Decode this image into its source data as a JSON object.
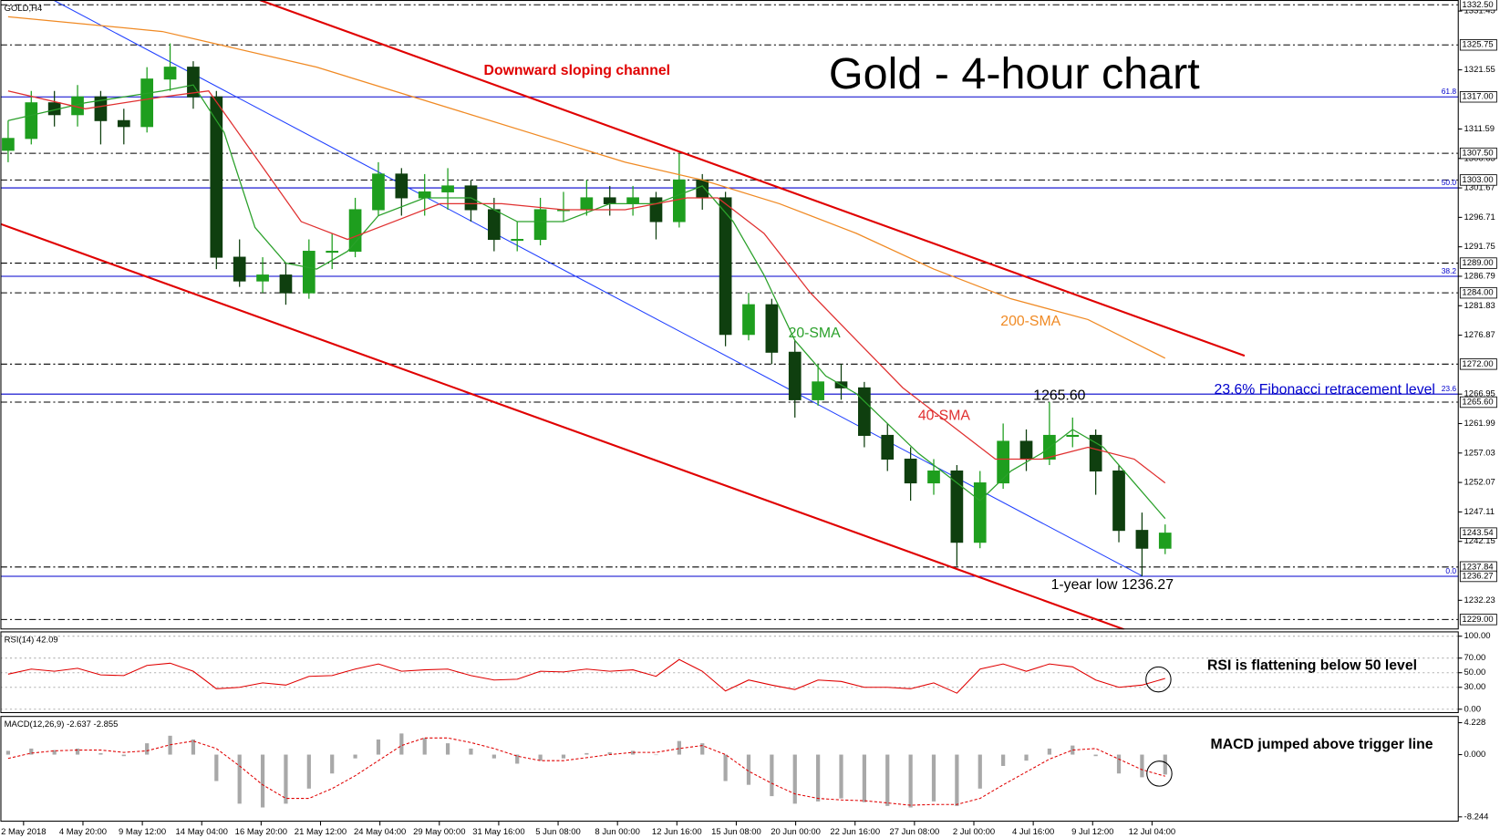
{
  "chart_data": [
    {
      "type": "candlestick",
      "title": "Gold - 4-hour chart",
      "symbol": "GOLD,H4",
      "xlim": [
        -1,
        188
      ],
      "ylim": [
        1227.32,
        1333.31
      ],
      "up_color": "#1e9e1e",
      "down_color": "#0f3f0f",
      "x": [
        0,
        3,
        6,
        9,
        12,
        15,
        18,
        21,
        24,
        27,
        30,
        33,
        36,
        39,
        42,
        45,
        48,
        51,
        54,
        57,
        60,
        63,
        66,
        69,
        72,
        75,
        78,
        81,
        84,
        87,
        90,
        93,
        96,
        99,
        102,
        105,
        108,
        111,
        114,
        117,
        120,
        123,
        126,
        129,
        132,
        135,
        138,
        141,
        144,
        147,
        150
      ],
      "open": [
        1308,
        1310,
        1316,
        1314,
        1317,
        1313,
        1312,
        1320,
        1322,
        1317,
        1290,
        1286,
        1287,
        1284,
        1291,
        1291,
        1298,
        1304,
        1300,
        1301,
        1302,
        1298,
        1293,
        1293,
        1298,
        1298,
        1300,
        1299,
        1300,
        1296,
        1303,
        1300,
        1277,
        1282,
        1274,
        1266,
        1269,
        1268,
        1260,
        1256,
        1252,
        1254,
        1242,
        1252,
        1259,
        1256,
        1260,
        1260,
        1254,
        1244,
        1241
      ],
      "high": [
        1313,
        1318,
        1318,
        1319,
        1318,
        1315,
        1322,
        1326,
        1323,
        1318,
        1293,
        1290,
        1289,
        1293,
        1294,
        1300,
        1306,
        1305,
        1304,
        1305,
        1303,
        1300,
        1296,
        1300,
        1301,
        1303,
        1302,
        1302,
        1301,
        1307.5,
        1304,
        1301,
        1284,
        1283,
        1276,
        1272,
        1272,
        1269,
        1262,
        1258,
        1256,
        1255,
        1254,
        1262,
        1261,
        1265.6,
        1263,
        1261,
        1255,
        1247,
        1245
      ],
      "low": [
        1306,
        1309,
        1312,
        1312,
        1309,
        1309,
        1311,
        1318,
        1315,
        1288,
        1285,
        1284,
        1282,
        1283,
        1288,
        1290,
        1297,
        1297,
        1297,
        1298,
        1296,
        1291,
        1291,
        1292,
        1296,
        1297,
        1297,
        1297,
        1293,
        1295,
        1298,
        1275,
        1276,
        1272,
        1263,
        1265,
        1266,
        1258,
        1254,
        1249,
        1250,
        1238,
        1241,
        1251,
        1254,
        1255,
        1258,
        1250,
        1242,
        1236.27,
        1240
      ],
      "close": [
        1310,
        1316,
        1314,
        1317,
        1313,
        1312,
        1320,
        1322,
        1317,
        1290,
        1286,
        1287,
        1284,
        1291,
        1291,
        1298,
        1304,
        1300,
        1301,
        1302,
        1298,
        1293,
        1293,
        1298,
        1298,
        1300,
        1299,
        1300,
        1296,
        1303,
        1300,
        1277,
        1282,
        1274,
        1266,
        1269,
        1268,
        1260,
        1256,
        1252,
        1254,
        1242,
        1252,
        1259,
        1256,
        1260,
        1260,
        1254,
        1244,
        1241,
        1243.54
      ],
      "series": [
        {
          "name": "20-SMA",
          "color": "#2aa02a",
          "x": [
            0,
            10,
            20,
            24,
            28,
            32,
            36,
            40,
            44,
            48,
            54,
            60,
            66,
            72,
            78,
            84,
            90,
            94,
            98,
            102,
            106,
            110,
            114,
            118,
            122,
            126,
            130,
            134,
            138,
            142,
            146,
            150
          ],
          "values": [
            1313,
            1316,
            1318,
            1319,
            1311,
            1295,
            1289,
            1288,
            1291,
            1297,
            1300,
            1300,
            1296,
            1296,
            1299,
            1299,
            1302,
            1296,
            1287,
            1276,
            1270,
            1267,
            1262,
            1257,
            1253,
            1249,
            1254,
            1257,
            1261,
            1258,
            1252,
            1246
          ]
        },
        {
          "name": "40-SMA",
          "color": "#e03030",
          "x": [
            0,
            10,
            20,
            26,
            32,
            38,
            44,
            50,
            56,
            64,
            72,
            80,
            88,
            92,
            98,
            104,
            110,
            116,
            122,
            128,
            134,
            140,
            146,
            150
          ],
          "values": [
            1318,
            1315,
            1317,
            1318,
            1307,
            1296,
            1293,
            1296,
            1299,
            1299,
            1298,
            1298,
            1300,
            1300,
            1294,
            1284,
            1276,
            1268,
            1262,
            1256,
            1256,
            1258,
            1256,
            1252
          ]
        },
        {
          "name": "200-SMA",
          "color": "#f08a24",
          "x": [
            0,
            20,
            40,
            60,
            80,
            90,
            100,
            110,
            120,
            130,
            140,
            150
          ],
          "values": [
            1330.5,
            1328,
            1322,
            1314,
            1306,
            1303,
            1299,
            1294,
            1288,
            1283,
            1279.5,
            1273
          ]
        }
      ],
      "trend_lines": [
        {
          "color": "#e00000",
          "x": [
            32.6,
            160.3
          ],
          "values": [
            1333.31,
            1273.4
          ]
        },
        {
          "color": "#e00000",
          "x": [
            -1,
            144.7
          ],
          "values": [
            1295.6,
            1227.32
          ]
        },
        {
          "color": "#2040ff",
          "x": [
            5.85,
            147.2
          ],
          "values": [
            1333.31,
            1236.2
          ]
        }
      ],
      "yticks": [
        1331.45,
        1321.55,
        1311.59,
        1306.63,
        1301.67,
        1296.71,
        1291.75,
        1286.79,
        1281.83,
        1276.87,
        1266.95,
        1261.99,
        1257.03,
        1252.07,
        1247.11,
        1242.15,
        1232.23
      ],
      "price_levels": [
        {
          "value": 1332.5,
          "label": "1332.50",
          "line": "dashed"
        },
        {
          "value": 1325.75,
          "label": "1325.75",
          "line": "dashed"
        },
        {
          "value": 1317,
          "label": "1317.00",
          "line": "none"
        },
        {
          "value": 1307.5,
          "label": "1307.50",
          "line": "dashed"
        },
        {
          "value": 1303,
          "label": "1303.00",
          "line": "dashed"
        },
        {
          "value": 1289,
          "label": "1289.00",
          "line": "dashed"
        },
        {
          "value": 1284,
          "label": "1284.00",
          "line": "dashed"
        },
        {
          "value": 1272,
          "label": "1272.00",
          "line": "dashed"
        },
        {
          "value": 1265.6,
          "label": "1265.60",
          "line": "dashed"
        },
        {
          "value": 1243.54,
          "label": "1243.54",
          "line": "none"
        },
        {
          "value": 1237.84,
          "label": "1237.84",
          "line": "dashed"
        },
        {
          "value": 1236.27,
          "label": "1236.27",
          "line": "none"
        },
        {
          "value": 1229,
          "label": "1229.00",
          "line": "dashed"
        }
      ],
      "fib_color": "#0000cc",
      "fib_levels": [
        {
          "price": 1317,
          "ratio_label": "61.8"
        },
        {
          "price": 1301.67,
          "ratio_label": "50.0"
        },
        {
          "price": 1286.79,
          "ratio_label": "38.2"
        },
        {
          "price": 1266.95,
          "ratio_label": "23.6"
        },
        {
          "price": 1236.27,
          "ratio_label": "0.0"
        }
      ],
      "annotations": [
        {
          "text": "Downward sloping channel",
          "color": "#e00000"
        },
        {
          "text": "1265.60",
          "color": "#000000"
        },
        {
          "text": "23.6% Fibonacci retracement level",
          "color": "#0000cc"
        },
        {
          "text": "1-year low 1236.27",
          "color": "#000000"
        }
      ]
    },
    {
      "type": "line",
      "title": "RSI(14) 42.09",
      "annotation": "RSI is flattening below 50 level",
      "xlim": [
        -1,
        188
      ],
      "ylim": [
        -5.3,
        106.6
      ],
      "color": "#e00000",
      "grid": true,
      "yticks": [
        {
          "value": 100,
          "label": "100.00"
        },
        {
          "value": 70,
          "label": "70.00"
        },
        {
          "value": 50,
          "label": "50.00"
        },
        {
          "value": 30,
          "label": "30.00"
        },
        {
          "value": 0,
          "label": "0.00"
        }
      ],
      "x": [
        0,
        3,
        6,
        9,
        12,
        15,
        18,
        21,
        24,
        27,
        30,
        33,
        36,
        39,
        42,
        45,
        48,
        51,
        54,
        57,
        60,
        63,
        66,
        69,
        72,
        75,
        78,
        81,
        84,
        87,
        90,
        93,
        96,
        99,
        102,
        105,
        108,
        111,
        114,
        117,
        120,
        123,
        126,
        129,
        132,
        135,
        138,
        141,
        144,
        147,
        150
      ],
      "values": [
        48,
        55,
        52,
        56,
        47,
        46,
        60,
        63,
        52,
        28,
        30,
        36,
        33,
        45,
        46,
        55,
        62,
        52,
        54,
        55,
        46,
        40,
        41,
        52,
        51,
        55,
        52,
        54,
        45,
        68,
        52,
        25,
        40,
        33,
        27,
        40,
        38,
        30,
        30,
        28,
        36,
        22,
        55,
        62,
        52,
        62,
        58,
        40,
        30,
        33,
        42.09
      ]
    },
    {
      "type": "macd",
      "title": "MACD(12,26,9) -2.637 -2.855",
      "annotation": "MACD jumped above trigger line",
      "xlim": [
        -1,
        188
      ],
      "ylim": [
        -8.88,
        5.12
      ],
      "yticks": [
        4.228,
        {
          "value": 0,
          "label": "0.000"
        },
        -8.244
      ],
      "xticks": [
        {
          "value": 2,
          "label": "2 May 2018"
        },
        {
          "value": 9.7,
          "label": "4 May 20:00"
        },
        {
          "value": 17.4,
          "label": "9 May 12:00"
        },
        {
          "value": 25.1,
          "label": "14 May 04:00"
        },
        {
          "value": 32.8,
          "label": "16 May 20:00"
        },
        {
          "value": 40.5,
          "label": "21 May 12:00"
        },
        {
          "value": 48.2,
          "label": "24 May 04:00"
        },
        {
          "value": 55.9,
          "label": "29 May 00:00"
        },
        {
          "value": 63.6,
          "label": "31 May 16:00"
        },
        {
          "value": 71.3,
          "label": "5 Jun 08:00"
        },
        {
          "value": 79,
          "label": "8 Jun 00:00"
        },
        {
          "value": 86.7,
          "label": "12 Jun 16:00"
        },
        {
          "value": 94.4,
          "label": "15 Jun 08:00"
        },
        {
          "value": 102.1,
          "label": "20 Jun 00:00"
        },
        {
          "value": 109.8,
          "label": "22 Jun 16:00"
        },
        {
          "value": 117.5,
          "label": "27 Jun 08:00"
        },
        {
          "value": 125.2,
          "label": "2 Jul 00:00"
        },
        {
          "value": 132.9,
          "label": "4 Jul 16:00"
        },
        {
          "value": 140.6,
          "label": "9 Jul 12:00"
        },
        {
          "value": 148.3,
          "label": "12 Jul 04:00"
        }
      ],
      "x": [
        0,
        3,
        6,
        9,
        12,
        15,
        18,
        21,
        24,
        27,
        30,
        33,
        36,
        39,
        42,
        45,
        48,
        51,
        54,
        57,
        60,
        63,
        66,
        69,
        72,
        75,
        78,
        81,
        84,
        87,
        90,
        93,
        96,
        99,
        102,
        105,
        108,
        111,
        114,
        117,
        120,
        123,
        126,
        129,
        132,
        135,
        138,
        141,
        144,
        147,
        150
      ],
      "series": [
        {
          "kind": "bar",
          "color": "#a8a8a8",
          "values": [
            0.5,
            0.8,
            0.6,
            0.8,
            0.2,
            -0.2,
            1.5,
            2.5,
            2.0,
            -3.5,
            -6.5,
            -7,
            -6.5,
            -4.5,
            -2.5,
            -0.5,
            2.0,
            2.8,
            2.2,
            1.5,
            0.8,
            -0.5,
            -1.2,
            -0.8,
            -0.5,
            0.2,
            0.3,
            0.5,
            0.0,
            1.8,
            1.5,
            -3.5,
            -4.0,
            -5.5,
            -6.5,
            -6.2,
            -5.8,
            -6.3,
            -6.8,
            -7.0,
            -6.2,
            -6.8,
            -4.5,
            -1.5,
            -0.8,
            0.8,
            1.2,
            -0.2,
            -2.5,
            -3.0,
            -2.637
          ]
        },
        {
          "kind": "line",
          "color": "#e00000",
          "dashed": true,
          "values": [
            -0.5,
            0.2,
            0.5,
            0.6,
            0.6,
            0.3,
            0.5,
            1.3,
            1.8,
            0.8,
            -1.5,
            -4,
            -5.8,
            -5.8,
            -4.5,
            -2.8,
            -0.8,
            1.2,
            2.2,
            2.2,
            1.6,
            0.8,
            -0.2,
            -0.8,
            -0.8,
            -0.4,
            0,
            0.3,
            0.3,
            0.8,
            1.2,
            0,
            -2.2,
            -3.8,
            -5.2,
            -5.8,
            -6,
            -6.1,
            -6.4,
            -6.7,
            -6.6,
            -6.6,
            -5.8,
            -4,
            -2.3,
            -0.6,
            0.6,
            0.8,
            -0.6,
            -2.0,
            -2.855
          ]
        }
      ]
    }
  ]
}
